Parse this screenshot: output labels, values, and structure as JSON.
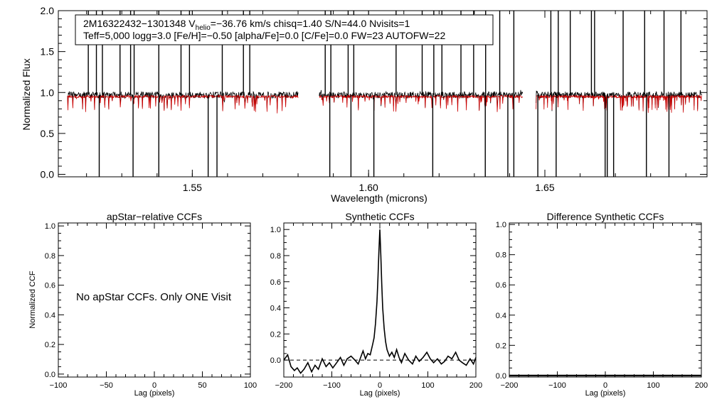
{
  "chart_data": [
    {
      "id": "spectrum",
      "type": "line",
      "xlabel": "Wavelength (microns)",
      "ylabel": "Normalized Flux",
      "xlim": [
        1.512,
        1.696
      ],
      "ylim": [
        -0.03,
        2.0
      ],
      "xticks": [
        1.55,
        1.6,
        1.65
      ],
      "xtick_labels": [
        "1.55",
        "1.60",
        "1.65"
      ],
      "yticks": [
        0.0,
        0.5,
        1.0,
        1.5,
        2.0
      ],
      "ytick_labels": [
        "0.0",
        "0.5",
        "1.0",
        "1.5",
        "2.0"
      ],
      "info": {
        "line1_a": "2M16322432−1301348  V",
        "line1_sub": "helio",
        "line1_b": "=−36.76 km/s  chisq=1.40  S/N=44.0  Nvisits=1",
        "line2": "Teff=5,000 logg=3.0 [Fe/H]=−0.50 [alpha/Fe]=0.0 [C/Fe]=0.0 FW=23 AUTOFW=22"
      },
      "chips": [
        [
          1.5146,
          1.58
        ],
        [
          1.586,
          1.6437
        ],
        [
          1.6475,
          1.6945
        ]
      ],
      "observed_level": 0.97,
      "model_level": 0.95,
      "series": [
        {
          "name": "",
          "color": "#000000"
        },
        {
          "name": "",
          "color": "#cc0000"
        }
      ],
      "emission_spikes": [
        1.5205,
        1.5228,
        1.5245,
        1.5295,
        1.5325,
        1.5335,
        1.5405,
        1.5468,
        1.5492,
        1.5585,
        1.5645,
        1.5663,
        1.5877,
        1.5893,
        1.5942,
        1.5958,
        1.6078,
        1.6152,
        1.6185,
        1.6208,
        1.6262,
        1.6298,
        1.6332,
        1.6372,
        1.6412,
        1.6517,
        1.6538,
        1.6572,
        1.6632,
        1.6641,
        1.6722,
        1.6783,
        1.6838,
        1.6886
      ],
      "absorption_dips": [
        1.5236,
        1.5332,
        1.5405,
        1.5545,
        1.557,
        1.589,
        1.595,
        1.6015,
        1.6182,
        1.6331,
        1.6395,
        1.6412,
        1.648,
        1.6532,
        1.6671,
        1.6677,
        1.6695,
        1.6788,
        1.6852
      ]
    },
    {
      "id": "apstar-ccf",
      "type": "line",
      "title": "apStar−relative CCFs",
      "xlabel": "Lag (pixels)",
      "ylabel": "Normalized CCF",
      "xlim": [
        -100,
        100
      ],
      "ylim": [
        -0.02,
        1.02
      ],
      "xticks": [
        -100,
        -50,
        0,
        50,
        100
      ],
      "xtick_labels": [
        "−100",
        "−50",
        "0",
        "50",
        "100"
      ],
      "yticks": [
        0.0,
        0.2,
        0.4,
        0.6,
        0.8,
        1.0
      ],
      "ytick_labels": [
        "0.0",
        "0.2",
        "0.4",
        "0.6",
        "0.8",
        "1.0"
      ],
      "note": "No apStar CCFs.  Only ONE Visit",
      "series": []
    },
    {
      "id": "synthetic-ccf",
      "type": "line",
      "title": "Synthetic CCFs",
      "xlabel": "Lag (pixels)",
      "xlim": [
        -200,
        200
      ],
      "ylim": [
        -0.13,
        1.05
      ],
      "xticks": [
        -200,
        -100,
        0,
        100,
        200
      ],
      "xtick_labels": [
        "−200",
        "−100",
        "0",
        "100",
        "200"
      ],
      "yticks": [
        0.0,
        0.2,
        0.4,
        0.6,
        0.8,
        1.0
      ],
      "ytick_labels": [
        "0.0",
        "0.2",
        "0.4",
        "0.6",
        "0.8",
        "1.0"
      ],
      "zero_line": 0.0,
      "series": [
        {
          "name": "",
          "x": [
            -200,
            -192,
            -185,
            -178,
            -172,
            -165,
            -158,
            -150,
            -142,
            -135,
            -128,
            -120,
            -112,
            -105,
            -98,
            -90,
            -82,
            -75,
            -68,
            -60,
            -52,
            -45,
            -40,
            -35,
            -30,
            -25,
            -20,
            -15,
            -12,
            -9,
            -6,
            -4,
            -2,
            0,
            2,
            4,
            6,
            9,
            12,
            15,
            20,
            25,
            30,
            35,
            40,
            45,
            52,
            60,
            68,
            75,
            82,
            90,
            98,
            105,
            112,
            120,
            128,
            135,
            142,
            150,
            158,
            165,
            172,
            180,
            188,
            195,
            200
          ],
          "y": [
            0.0,
            0.04,
            -0.05,
            -0.08,
            -0.06,
            -0.1,
            -0.07,
            -0.02,
            -0.09,
            -0.04,
            -0.07,
            0.01,
            -0.05,
            -0.02,
            -0.06,
            -0.02,
            0.02,
            -0.04,
            0.01,
            0.03,
            0.0,
            -0.03,
            0.02,
            0.07,
            0.01,
            0.05,
            0.04,
            0.12,
            0.17,
            0.28,
            0.45,
            0.62,
            0.82,
            1.0,
            0.8,
            0.58,
            0.4,
            0.24,
            0.14,
            0.08,
            0.03,
            0.06,
            0.02,
            0.08,
            0.02,
            -0.02,
            0.05,
            0.0,
            -0.03,
            0.03,
            -0.01,
            0.02,
            0.06,
            0.01,
            -0.02,
            0.01,
            -0.03,
            -0.01,
            0.03,
            0.01,
            0.06,
            0.0,
            -0.02,
            -0.04,
            0.01,
            -0.03,
            0.02
          ]
        }
      ]
    },
    {
      "id": "difference-ccf",
      "type": "line",
      "title": "Difference Synthetic CCFs",
      "xlabel": "Lag (pixels)",
      "xlim": [
        -200,
        200
      ],
      "ylim": [
        -0.01,
        1.01
      ],
      "xticks": [
        -200,
        -100,
        0,
        100,
        200
      ],
      "xtick_labels": [
        "−200",
        "−100",
        "0",
        "100",
        "200"
      ],
      "yticks": [
        0.0,
        0.2,
        0.4,
        0.6,
        0.8,
        1.0
      ],
      "ytick_labels": [
        "0.0",
        "0.2",
        "0.4",
        "0.6",
        "0.8",
        "1.0"
      ],
      "series": [
        {
          "name": "",
          "x": [
            -200,
            200
          ],
          "y": [
            0.0,
            0.0
          ]
        }
      ]
    }
  ]
}
